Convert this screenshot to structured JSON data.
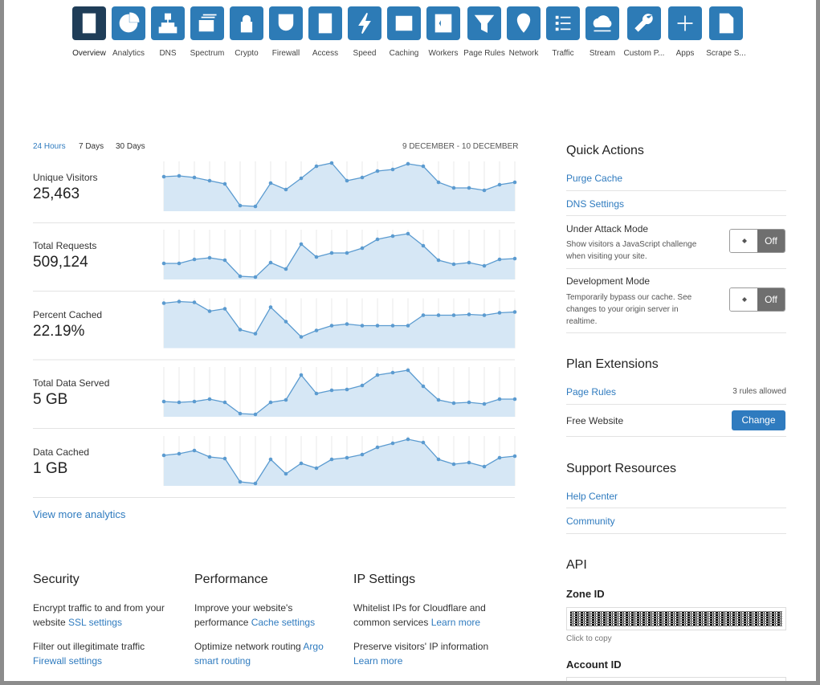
{
  "nav": {
    "items": [
      "Overview",
      "Analytics",
      "DNS",
      "Spectrum",
      "Crypto",
      "Firewall",
      "Access",
      "Speed",
      "Caching",
      "Workers",
      "Page Rules",
      "Network",
      "Traffic",
      "Stream",
      "Custom P...",
      "Apps",
      "Scrape S..."
    ]
  },
  "analytics": {
    "ranges": [
      "24 Hours",
      "7 Days",
      "30 Days"
    ],
    "date_range": "9 DECEMBER - 10 DECEMBER",
    "metrics": [
      {
        "label": "Unique Visitors",
        "value": "25,463",
        "sparkline": [
          43,
          44,
          42,
          38,
          34,
          7,
          6,
          35,
          27,
          41,
          56,
          60,
          38,
          42,
          50,
          52,
          59,
          56,
          36,
          29,
          29,
          26,
          33,
          36
        ]
      },
      {
        "label": "Total Requests",
        "value": "509,124",
        "sparkline": [
          20,
          20,
          25,
          27,
          24,
          4,
          3,
          21,
          13,
          44,
          28,
          33,
          33,
          39,
          50,
          54,
          57,
          42,
          24,
          19,
          21,
          17,
          25,
          26
        ]
      },
      {
        "label": "Percent Cached",
        "value": "22.19%",
        "sparkline": [
          56,
          58,
          57,
          46,
          49,
          23,
          18,
          51,
          33,
          14,
          22,
          28,
          30,
          28,
          28,
          28,
          28,
          41,
          41,
          41,
          42,
          41,
          44,
          45
        ]
      },
      {
        "label": "Total Data Served",
        "value": "5 GB",
        "sparkline": [
          19,
          18,
          19,
          22,
          18,
          4,
          3,
          18,
          21,
          52,
          29,
          33,
          34,
          39,
          52,
          55,
          58,
          38,
          21,
          17,
          18,
          16,
          22,
          22
        ]
      },
      {
        "label": "Data Cached",
        "value": "1 GB",
        "sparkline": [
          38,
          40,
          44,
          36,
          34,
          5,
          3,
          33,
          15,
          28,
          22,
          33,
          35,
          39,
          48,
          53,
          58,
          54,
          33,
          27,
          29,
          24,
          35,
          37
        ]
      }
    ],
    "more_link": "View more analytics"
  },
  "sections": [
    {
      "title": "Security",
      "items": [
        {
          "text": "Encrypt traffic to and from your website",
          "link": "SSL settings"
        },
        {
          "text": "Filter out illegitimate traffic",
          "link": "Firewall settings"
        }
      ]
    },
    {
      "title": "Performance",
      "items": [
        {
          "text": "Improve your website's performance",
          "link": "Cache settings"
        },
        {
          "text": "Optimize network routing",
          "link": "Argo smart routing"
        }
      ]
    },
    {
      "title": "IP Settings",
      "items": [
        {
          "text": "Whitelist IPs for Cloudflare and common services",
          "link": "Learn more"
        },
        {
          "text": "Preserve visitors' IP information",
          "link": "Learn more"
        }
      ]
    }
  ],
  "sidebar": {
    "quick_actions": {
      "title": "Quick Actions",
      "links": [
        "Purge Cache",
        "DNS Settings"
      ],
      "toggles": [
        {
          "label": "Under Attack Mode",
          "description": "Show visitors a JavaScript challenge when visiting your site.",
          "state": "Off"
        },
        {
          "label": "Development Mode",
          "description": "Temporarily bypass our cache. See changes to your origin server in realtime.",
          "state": "Off"
        }
      ]
    },
    "plan_extensions": {
      "title": "Plan Extensions",
      "rows": [
        {
          "label": "Page Rules",
          "note": "3 rules allowed"
        },
        {
          "label": "Free Website",
          "button": "Change"
        }
      ]
    },
    "support": {
      "title": "Support Resources",
      "links": [
        "Help Center",
        "Community"
      ]
    },
    "api": {
      "title": "API",
      "zone_label": "Zone ID",
      "copy_hint": "Click to copy",
      "account_label": "Account ID"
    }
  }
}
